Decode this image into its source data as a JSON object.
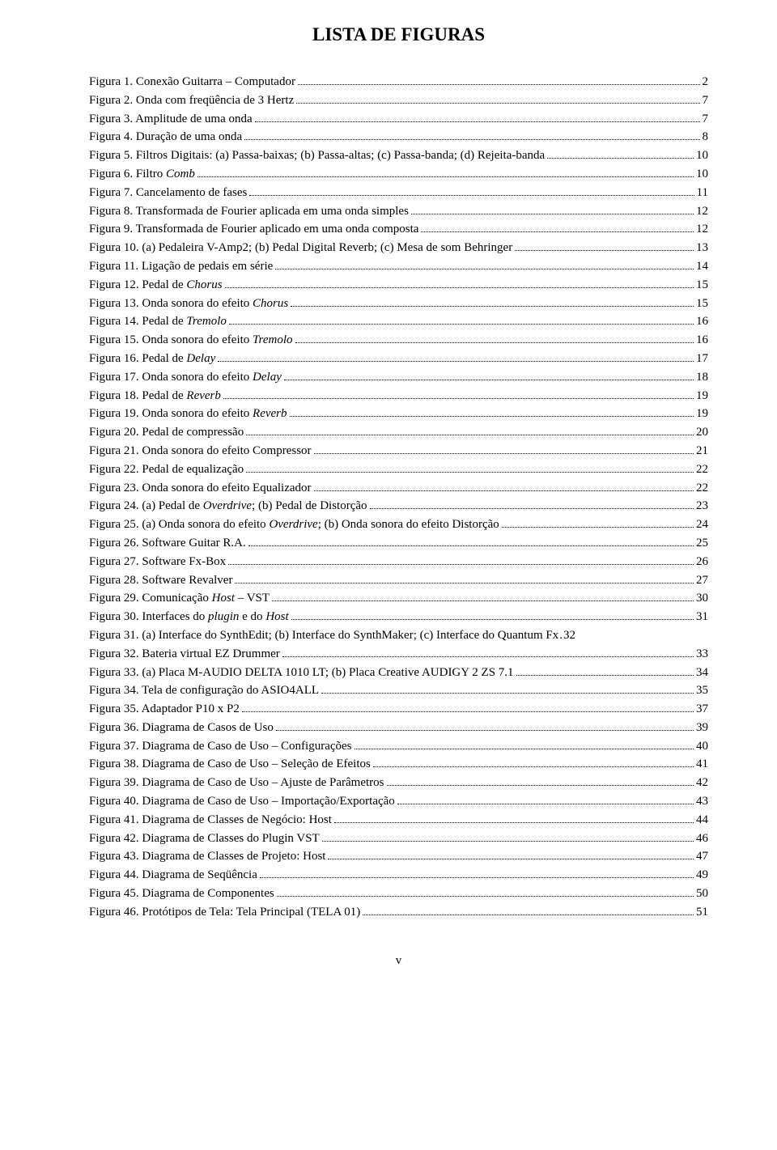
{
  "title": "LISTA DE FIGURAS",
  "pageNumber": "v",
  "entries": [
    {
      "label": "Figura 1. Conexão Guitarra – Computador",
      "page": "2"
    },
    {
      "label": "Figura 2. Onda com freqüência de 3 Hertz",
      "page": "7"
    },
    {
      "label": "Figura 3. Amplitude de uma onda",
      "page": "7"
    },
    {
      "label": "Figura 4. Duração de uma onda",
      "page": "8"
    },
    {
      "label": "Figura 5. Filtros Digitais: (a) Passa-baixas; (b) Passa-altas; (c) Passa-banda; (d) Rejeita-banda",
      "page": "10"
    },
    {
      "label": "Figura 6. Filtro <span class=\"italic\">Comb</span>",
      "page": "10"
    },
    {
      "label": "Figura 7. Cancelamento de fases",
      "page": "11"
    },
    {
      "label": "Figura 8. Transformada de Fourier aplicada em uma onda simples",
      "page": "12"
    },
    {
      "label": "Figura 9. Transformada de Fourier aplicado em uma onda composta",
      "page": "12"
    },
    {
      "label": "Figura 10. (a) Pedaleira V-Amp2; (b) Pedal Digital Reverb; (c) Mesa de som Behringer",
      "page": "13"
    },
    {
      "label": "Figura 11. Ligação de pedais em série",
      "page": "14"
    },
    {
      "label": "Figura 12. Pedal de <span class=\"italic\">Chorus</span>",
      "page": "15"
    },
    {
      "label": "Figura 13. Onda sonora do efeito <span class=\"italic\">Chorus</span>",
      "page": "15"
    },
    {
      "label": "Figura 14. Pedal de <span class=\"italic\">Tremolo</span>",
      "page": "16"
    },
    {
      "label": "Figura 15. Onda sonora do efeito <span class=\"italic\">Tremolo</span>",
      "page": "16"
    },
    {
      "label": "Figura 16. Pedal de <span class=\"italic\">Delay</span>",
      "page": "17"
    },
    {
      "label": "Figura 17. Onda sonora do efeito <span class=\"italic\">Delay</span>",
      "page": "18"
    },
    {
      "label": "Figura 18. Pedal de <span class=\"italic\">Reverb</span>",
      "page": "19"
    },
    {
      "label": "Figura 19. Onda sonora do efeito <span class=\"italic\">Reverb</span>",
      "page": "19"
    },
    {
      "label": "Figura 20. Pedal de compressão",
      "page": "20"
    },
    {
      "label": "Figura 21. Onda sonora do efeito Compressor",
      "page": "21"
    },
    {
      "label": "Figura 22. Pedal de equalização",
      "page": "22"
    },
    {
      "label": "Figura 23. Onda sonora do efeito Equalizador",
      "page": "22"
    },
    {
      "label": "Figura 24. (a) Pedal de <span class=\"italic\">Overdrive</span>; (b) Pedal de Distorção",
      "page": "23"
    },
    {
      "label": "Figura 25. (a) Onda sonora do efeito <span class=\"italic\">Overdrive</span>; (b) Onda sonora do efeito Distorção",
      "page": "24"
    },
    {
      "label": "Figura 26. Software Guitar R.A. ",
      "page": "25"
    },
    {
      "label": "Figura 27. Software Fx-Box",
      "page": "26"
    },
    {
      "label": "Figura 28. Software Revalver",
      "page": "27"
    },
    {
      "label": "Figura 29. Comunicação <span class=\"italic\">Host</span> – VST",
      "page": "30"
    },
    {
      "label": "Figura 30. Interfaces do <span class=\"italic\">plugin</span> e do <span class=\"italic\">Host</span>",
      "page": "31"
    },
    {
      "label": "Figura 31. (a) Interface do SynthEdit; (b) Interface do SynthMaker; (c) Interface do Quantum Fx",
      "page": "32",
      "nodots": true
    },
    {
      "label": "Figura 32. Bateria virtual EZ Drummer",
      "page": "33"
    },
    {
      "label": "Figura 33. (a) Placa M-AUDIO DELTA 1010 LT; (b) Placa Creative AUDIGY 2 ZS 7.1",
      "page": "34"
    },
    {
      "label": "Figura 34. Tela de configuração do ASIO4ALL",
      "page": "35"
    },
    {
      "label": "Figura 35. Adaptador P10 x P2",
      "page": "37"
    },
    {
      "label": "Figura 36. Diagrama de Casos de Uso",
      "page": "39"
    },
    {
      "label": "Figura 37. Diagrama de Caso de Uso – Configurações",
      "page": "40"
    },
    {
      "label": "Figura 38. Diagrama de Caso de Uso – Seleção de Efeitos",
      "page": "41"
    },
    {
      "label": "Figura 39. Diagrama de Caso de Uso – Ajuste de Parâmetros",
      "page": "42"
    },
    {
      "label": "Figura 40. Diagrama de Caso de Uso – Importação/Exportação",
      "page": "43"
    },
    {
      "label": "Figura 41. Diagrama de Classes de Negócio: Host",
      "page": "44"
    },
    {
      "label": "Figura 42. Diagrama de Classes do Plugin VST",
      "page": "46"
    },
    {
      "label": "Figura 43. Diagrama de Classes de Projeto: Host",
      "page": "47"
    },
    {
      "label": "Figura 44. Diagrama de Seqüência",
      "page": "49"
    },
    {
      "label": "Figura 45. Diagrama de Componentes",
      "page": "50"
    },
    {
      "label": "Figura 46. Protótipos de Tela: Tela Principal (TELA 01)",
      "page": "51"
    }
  ]
}
